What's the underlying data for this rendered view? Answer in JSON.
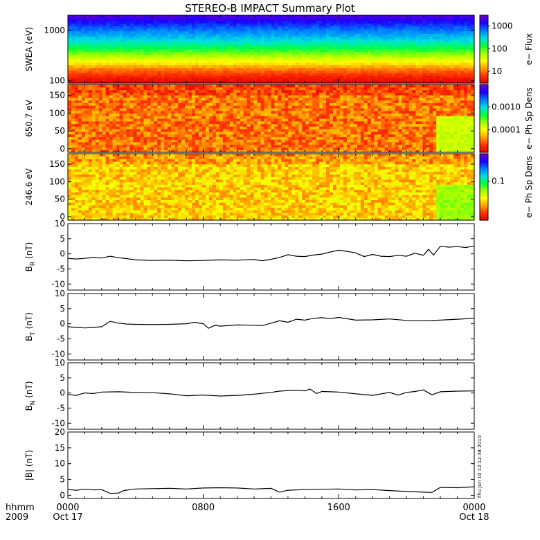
{
  "title": "STEREO-B IMPACT Summary Plot",
  "timestamp": "Thu Jun 10 12:12:38 2010",
  "x_axis": {
    "row1_label": "hhmm",
    "row2_label": "2009",
    "ticks": [
      {
        "hour": 0,
        "time": "0000",
        "date": "Oct 17"
      },
      {
        "hour": 8,
        "time": "0800",
        "date": ""
      },
      {
        "hour": 16,
        "time": "1600",
        "date": ""
      },
      {
        "hour": 24,
        "time": "0000",
        "date": "Oct 18"
      }
    ],
    "range_hours": [
      0,
      24
    ]
  },
  "colors": {
    "spectrum": [
      "#7000c8",
      "#1a00ff",
      "#0080ff",
      "#00e0e0",
      "#00ff40",
      "#a0ff00",
      "#ffff00",
      "#ffa000",
      "#ff3000",
      "#e00000"
    ],
    "line": "#000000"
  },
  "chart_data": [
    {
      "type": "heatmap",
      "name": "swea",
      "ylabel": "SWEA (eV)",
      "yscale": "log",
      "ylim": [
        90,
        2000
      ],
      "yticks": [
        {
          "v": 100,
          "label": "100"
        },
        {
          "v": 1000,
          "label": "1000"
        }
      ],
      "colorbar": {
        "label": "e− Flux",
        "scale": "log",
        "range": [
          3,
          3000
        ],
        "ticks": [
          {
            "v": 10,
            "label": "10"
          },
          {
            "v": 100,
            "label": "100"
          },
          {
            "v": 1000,
            "label": "1000"
          }
        ]
      },
      "profile": [
        {
          "energy": 90,
          "level": 1.0
        },
        {
          "energy": 130,
          "level": 0.9
        },
        {
          "energy": 180,
          "level": 0.8
        },
        {
          "energy": 220,
          "level": 0.7
        },
        {
          "energy": 290,
          "level": 0.6
        },
        {
          "energy": 380,
          "level": 0.5
        },
        {
          "energy": 480,
          "level": 0.42
        },
        {
          "energy": 620,
          "level": 0.34
        },
        {
          "energy": 850,
          "level": 0.26
        },
        {
          "energy": 1200,
          "level": 0.18
        },
        {
          "energy": 1600,
          "level": 0.1
        },
        {
          "energy": 2000,
          "level": 0.04
        }
      ]
    },
    {
      "type": "heatmap",
      "name": "pad650",
      "ylabel": "650.7 eV",
      "ylim": [
        -10,
        180
      ],
      "yticks": [
        {
          "v": 0,
          "label": "0"
        },
        {
          "v": 50,
          "label": "50"
        },
        {
          "v": 100,
          "label": "100"
        },
        {
          "v": 150,
          "label": "150"
        }
      ],
      "colorbar": {
        "label": "e− Ph Sp Dens",
        "scale": "log",
        "range": [
          1e-05,
          0.01
        ],
        "ticks": [
          {
            "v": 0.0001,
            "label": "0.0001"
          },
          {
            "v": 0.001,
            "label": "0.0010"
          }
        ]
      },
      "base_level": 0.82,
      "late_low": {
        "from_hour": 21.8,
        "level": 0.6
      }
    },
    {
      "type": "heatmap",
      "name": "pad246",
      "ylabel": "246.6 eV",
      "ylim": [
        -10,
        180
      ],
      "yticks": [
        {
          "v": 0,
          "label": "0"
        },
        {
          "v": 50,
          "label": "50"
        },
        {
          "v": 100,
          "label": "100"
        },
        {
          "v": 150,
          "label": "150"
        }
      ],
      "colorbar": {
        "label": "e− Ph Sp Dens",
        "scale": "log",
        "range": [
          0.01,
          0.5
        ],
        "ticks": [
          {
            "v": 0.1,
            "label": "0.1"
          }
        ]
      },
      "base_level": 0.72,
      "late_low": {
        "from_hour": 21.8,
        "level": 0.55
      }
    },
    {
      "type": "line",
      "name": "br",
      "ylabel": "B",
      "ylabel_sub": "R",
      "ylabel_unit": "(nT)",
      "ylim": [
        -12,
        10
      ],
      "yticks": [
        {
          "v": -10,
          "label": "-10"
        },
        {
          "v": -5,
          "label": "-5"
        },
        {
          "v": 0,
          "label": "0"
        },
        {
          "v": 5,
          "label": "5"
        },
        {
          "v": 10,
          "label": "10"
        }
      ],
      "x": [
        0,
        0.5,
        1,
        1.5,
        2,
        2.5,
        3,
        3.5,
        4,
        5,
        6,
        7,
        8,
        9,
        10,
        11,
        11.5,
        12,
        12.5,
        13,
        13.5,
        14,
        14.5,
        15,
        15.5,
        16,
        16.5,
        17,
        17.5,
        18,
        18.5,
        19,
        19.5,
        20,
        20.5,
        21,
        21.3,
        21.6,
        22,
        22.5,
        23,
        23.5,
        24
      ],
      "y": [
        -1.5,
        -1.7,
        -1.5,
        -1.2,
        -1.4,
        -0.8,
        -1.3,
        -1.6,
        -2,
        -2.2,
        -2.1,
        -2.3,
        -2.2,
        -2,
        -2.1,
        -1.9,
        -2.3,
        -1.8,
        -1.2,
        -0.3,
        -0.8,
        -0.9,
        -0.4,
        -0.1,
        0.6,
        1.2,
        0.8,
        0.3,
        -0.9,
        -0.2,
        -0.8,
        -0.9,
        -0.5,
        -0.8,
        0.2,
        -0.5,
        1.5,
        -0.4,
        2.5,
        2.2,
        2.4,
        2.1,
        2.6
      ]
    },
    {
      "type": "line",
      "name": "bt",
      "ylabel": "B",
      "ylabel_sub": "T",
      "ylabel_unit": "(nT)",
      "ylim": [
        -12,
        10
      ],
      "yticks": [
        {
          "v": -10,
          "label": "-10"
        },
        {
          "v": -5,
          "label": "-5"
        },
        {
          "v": 0,
          "label": "0"
        },
        {
          "v": 5,
          "label": "5"
        },
        {
          "v": 10,
          "label": "10"
        }
      ],
      "x": [
        0,
        0.5,
        1,
        1.5,
        2,
        2.5,
        3,
        3.5,
        4,
        5,
        6,
        7,
        7.5,
        8,
        8.3,
        8.7,
        9,
        10,
        11,
        11.5,
        12,
        12.5,
        13,
        13.5,
        14,
        14.5,
        15,
        15.5,
        16,
        17,
        18,
        19,
        20,
        21,
        22,
        23,
        24
      ],
      "y": [
        -1,
        -1.2,
        -1.4,
        -1.2,
        -1,
        0.8,
        0.2,
        -0.1,
        -0.2,
        -0.3,
        -0.2,
        0,
        0.5,
        0,
        -1.5,
        -0.5,
        -0.8,
        -0.4,
        -0.5,
        -0.6,
        0.2,
        1,
        0.5,
        1.5,
        1.2,
        1.8,
        2,
        1.7,
        2.1,
        1.2,
        1.3,
        1.6,
        1.1,
        1,
        1.2,
        1.5,
        1.8
      ]
    },
    {
      "type": "line",
      "name": "bn",
      "ylabel": "B",
      "ylabel_sub": "N",
      "ylabel_unit": "(nT)",
      "ylim": [
        -12,
        10
      ],
      "yticks": [
        {
          "v": -10,
          "label": "-10"
        },
        {
          "v": -5,
          "label": "-5"
        },
        {
          "v": 0,
          "label": "0"
        },
        {
          "v": 5,
          "label": "5"
        },
        {
          "v": 10,
          "label": "10"
        }
      ],
      "x": [
        0,
        0.5,
        1,
        1.5,
        2,
        3,
        4,
        5,
        6,
        7,
        8,
        9,
        10,
        11,
        12,
        12.5,
        13,
        13.5,
        14,
        14.3,
        14.7,
        15,
        15.5,
        16,
        17,
        18,
        19,
        19.5,
        20,
        20.5,
        21,
        21.5,
        22,
        23,
        24
      ],
      "y": [
        -0.5,
        -0.8,
        0,
        -0.2,
        0.3,
        0.4,
        0.2,
        0.1,
        -0.3,
        -0.9,
        -0.7,
        -1,
        -0.8,
        -0.4,
        0.2,
        0.6,
        0.8,
        0.9,
        0.7,
        1.3,
        -0.2,
        0.5,
        0.4,
        0.3,
        -0.3,
        -0.8,
        0.2,
        -0.7,
        0.2,
        0.5,
        1,
        -0.6,
        0.4,
        0.6,
        0.7
      ]
    },
    {
      "type": "line",
      "name": "bmag",
      "ylabel": "|B|",
      "ylabel_sub": "",
      "ylabel_unit": "(nT)",
      "ylim": [
        -1,
        20
      ],
      "yticks": [
        {
          "v": 0,
          "label": "0"
        },
        {
          "v": 5,
          "label": "5"
        },
        {
          "v": 10,
          "label": "10"
        },
        {
          "v": 15,
          "label": "15"
        },
        {
          "v": 20,
          "label": "20"
        }
      ],
      "x": [
        0,
        0.5,
        1,
        1.5,
        2,
        2.5,
        3,
        3.3,
        3.7,
        4,
        5,
        6,
        7,
        8,
        9,
        10,
        11,
        12,
        12.5,
        13,
        14,
        15,
        16,
        17,
        18,
        19,
        20,
        21,
        21.5,
        22,
        23,
        24
      ],
      "y": [
        1.8,
        1.6,
        1.9,
        1.7,
        1.8,
        0.6,
        0.7,
        1.5,
        1.8,
        2,
        2.1,
        2.2,
        2,
        2.3,
        2.4,
        2.3,
        2,
        2.2,
        1,
        1.6,
        1.8,
        1.9,
        2,
        1.7,
        1.8,
        1.5,
        1.2,
        1,
        0.9,
        2.5,
        2.4,
        2.7
      ]
    }
  ]
}
